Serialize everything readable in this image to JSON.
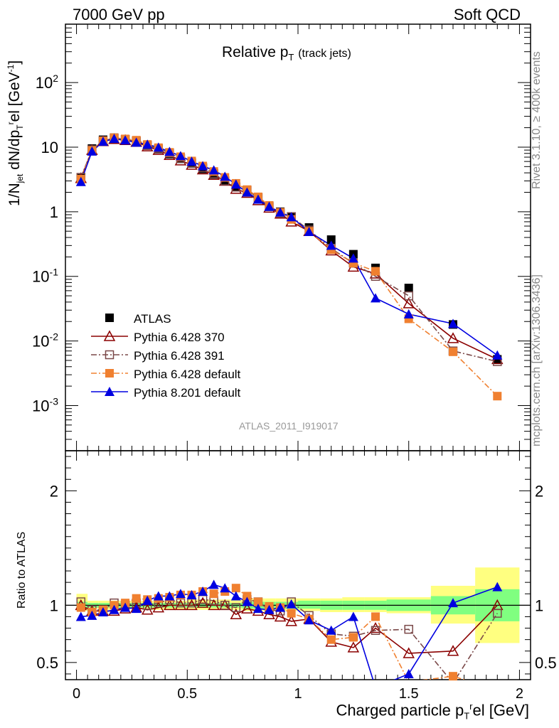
{
  "header": {
    "left": "7000 GeV pp",
    "right": "Soft QCD"
  },
  "side": {
    "rivet": "Rivet 3.1.10, ≥ 400k events",
    "mcplots": "mcplots.cern.ch [arXiv:1306.3436]"
  },
  "watermark": "ATLAS_2011_I919017",
  "chart_data": [
    {
      "type": "scatter",
      "title": "Relative p_T (track jets)",
      "title_main": "Relative p",
      "title_sub": "T",
      "title_note": "(track jets)",
      "ylabel": "1/N_jet dN/dp_T^rel [GeV^-1]",
      "yscale": "log",
      "ylim": [
        0.0002,
        800
      ],
      "xlim": [
        -0.05,
        2.05
      ],
      "ytick_labels": [
        "10^-3",
        "10^-2",
        "10^-1",
        "1",
        "10",
        "10^2"
      ],
      "legend_position": "lower-left",
      "x": [
        0.02,
        0.07,
        0.12,
        0.17,
        0.22,
        0.27,
        0.32,
        0.37,
        0.42,
        0.47,
        0.52,
        0.57,
        0.62,
        0.67,
        0.72,
        0.77,
        0.82,
        0.87,
        0.92,
        0.97,
        1.05,
        1.15,
        1.25,
        1.35,
        1.5,
        1.7,
        1.9
      ],
      "series": [
        {
          "name": "ATLAS",
          "color": "#000000",
          "marker": "filled-square",
          "values": [
            3.3,
            9.5,
            13.0,
            14.0,
            13.2,
            12.2,
            10.7,
            9.3,
            7.8,
            6.6,
            5.6,
            4.6,
            3.8,
            3.05,
            2.45,
            2.05,
            1.6,
            1.25,
            1.0,
            0.82,
            0.57,
            0.37,
            0.22,
            0.135,
            0.066,
            0.018,
            0.0052
          ]
        },
        {
          "name": "Pythia 6.428 370",
          "color": "#8b0000",
          "marker": "open-triangle",
          "line": "solid",
          "values": [
            3.3,
            9.0,
            12.3,
            13.3,
            12.8,
            12.0,
            10.2,
            9.0,
            7.5,
            6.2,
            5.3,
            4.5,
            3.7,
            3.0,
            2.25,
            1.95,
            1.5,
            1.15,
            0.93,
            0.7,
            0.5,
            0.25,
            0.14,
            0.11,
            0.038,
            0.011,
            0.0052
          ]
        },
        {
          "name": "Pythia 6.428 391",
          "color": "#7a4848",
          "marker": "open-square",
          "line": "dashdot",
          "values": [
            3.4,
            9.1,
            12.5,
            13.8,
            13.1,
            12.4,
            10.6,
            9.4,
            8.1,
            6.7,
            5.7,
            4.8,
            3.9,
            3.0,
            2.4,
            2.15,
            1.65,
            1.2,
            0.95,
            0.84,
            0.52,
            0.27,
            0.16,
            0.1,
            0.05,
            0.007,
            0.0048
          ]
        },
        {
          "name": "Pythia 6.428 default",
          "color": "#f08030",
          "marker": "filled-square",
          "line": "dashdot",
          "values": [
            3.2,
            8.9,
            12.5,
            14.0,
            13.4,
            12.8,
            11.0,
            9.8,
            8.3,
            7.1,
            6.1,
            5.1,
            4.2,
            3.4,
            2.75,
            2.2,
            1.7,
            1.25,
            0.98,
            0.76,
            0.5,
            0.26,
            0.16,
            0.12,
            0.022,
            0.0068,
            0.0014
          ]
        },
        {
          "name": "Pythia 8.201 default",
          "color": "#0000e0",
          "marker": "filled-triangle",
          "line": "solid",
          "values": [
            2.9,
            8.6,
            12.2,
            13.5,
            12.8,
            11.8,
            11.0,
            9.9,
            8.5,
            7.3,
            6.0,
            5.1,
            4.4,
            3.5,
            2.65,
            2.0,
            1.55,
            1.2,
            0.98,
            0.83,
            0.49,
            0.3,
            0.19,
            0.046,
            0.026,
            0.0185,
            0.006
          ]
        }
      ]
    },
    {
      "type": "scatter",
      "ylabel": "Ratio to ATLAS",
      "xlabel": "Charged particle p_T^rel [GeV]",
      "xlabel_main": "Charged particle p",
      "xlabel_sub": "T",
      "xlabel_sup": "r",
      "xlabel_tail": "el [GeV]",
      "ylim": [
        0.35,
        2.35
      ],
      "xlim": [
        -0.05,
        2.05
      ],
      "ytick_labels": [
        "0.5",
        "1",
        "2"
      ],
      "xtick_labels": [
        "0",
        "0.5",
        "1",
        "1.5",
        "2"
      ],
      "x": [
        0.02,
        0.07,
        0.12,
        0.17,
        0.22,
        0.27,
        0.32,
        0.37,
        0.42,
        0.47,
        0.52,
        0.57,
        0.62,
        0.67,
        0.72,
        0.77,
        0.82,
        0.87,
        0.92,
        0.97,
        1.05,
        1.15,
        1.25,
        1.35,
        1.5,
        1.7,
        1.9
      ],
      "series": [
        {
          "name": "Pythia 6.428 370",
          "color": "#8b0000",
          "values": [
            1.0,
            0.95,
            0.95,
            0.95,
            0.97,
            0.98,
            0.96,
            0.98,
            1.0,
            1.0,
            1.0,
            1.02,
            1.0,
            1.0,
            0.92,
            0.97,
            0.95,
            0.92,
            0.9,
            0.86,
            0.88,
            0.68,
            0.63,
            0.8,
            0.58,
            0.6,
            1.0
          ]
        },
        {
          "name": "Pythia 6.428 391",
          "color": "#7a4848",
          "values": [
            1.03,
            0.96,
            0.96,
            1.02,
            1.0,
            1.02,
            1.0,
            1.02,
            1.05,
            1.02,
            1.02,
            1.05,
            1.04,
            1.0,
            0.98,
            1.05,
            1.03,
            0.96,
            0.95,
            1.03,
            0.91,
            0.75,
            0.73,
            0.78,
            0.79,
            0.32,
            0.93
          ]
        },
        {
          "name": "Pythia 6.428 default",
          "color": "#f08030",
          "values": [
            0.98,
            0.94,
            0.96,
            1.0,
            1.02,
            1.06,
            1.05,
            1.06,
            1.07,
            1.09,
            1.09,
            1.12,
            1.1,
            1.12,
            1.15,
            1.08,
            1.03,
            0.99,
            0.98,
            0.93,
            0.88,
            0.7,
            0.72,
            0.9,
            0.33,
            0.38,
            0.26
          ]
        },
        {
          "name": "Pythia 8.201 default",
          "color": "#0000e0",
          "values": [
            0.9,
            0.91,
            0.94,
            0.96,
            0.98,
            0.97,
            1.04,
            1.08,
            1.08,
            1.1,
            1.09,
            1.12,
            1.18,
            1.15,
            1.08,
            1.03,
            0.97,
            0.96,
            0.98,
            1.01,
            0.87,
            0.78,
            0.9,
            0.28,
            0.4,
            1.02,
            1.16
          ]
        }
      ],
      "bands": {
        "edges": [
          0.0,
          0.05,
          0.1,
          0.15,
          0.2,
          0.25,
          0.3,
          0.35,
          0.4,
          0.45,
          0.5,
          0.55,
          0.6,
          0.65,
          0.7,
          0.75,
          0.8,
          0.85,
          0.9,
          0.95,
          1.0,
          1.1,
          1.2,
          1.3,
          1.4,
          1.6,
          1.8,
          2.0
        ],
        "outer_lo": [
          0.95,
          0.97,
          0.96,
          0.97,
          0.97,
          0.97,
          0.96,
          0.96,
          0.96,
          0.96,
          0.96,
          0.96,
          0.96,
          0.96,
          0.96,
          0.95,
          0.95,
          0.95,
          0.95,
          0.95,
          0.95,
          0.94,
          0.94,
          0.94,
          0.93,
          0.84,
          0.67,
          0.5
        ],
        "outer_hi": [
          1.1,
          1.04,
          1.04,
          1.04,
          1.04,
          1.04,
          1.04,
          1.04,
          1.04,
          1.04,
          1.05,
          1.05,
          1.05,
          1.05,
          1.05,
          1.06,
          1.06,
          1.06,
          1.06,
          1.06,
          1.06,
          1.06,
          1.07,
          1.07,
          1.07,
          1.17,
          1.33,
          1.6
        ],
        "inner_lo": [
          0.97,
          0.98,
          0.98,
          0.98,
          0.98,
          0.98,
          0.98,
          0.98,
          0.98,
          0.98,
          0.98,
          0.98,
          0.98,
          0.98,
          0.98,
          0.97,
          0.97,
          0.97,
          0.97,
          0.97,
          0.97,
          0.96,
          0.96,
          0.96,
          0.95,
          0.92,
          0.86,
          0.8
        ],
        "inner_hi": [
          1.03,
          1.02,
          1.02,
          1.02,
          1.02,
          1.02,
          1.02,
          1.02,
          1.02,
          1.02,
          1.02,
          1.02,
          1.02,
          1.02,
          1.02,
          1.03,
          1.03,
          1.03,
          1.03,
          1.03,
          1.04,
          1.04,
          1.04,
          1.04,
          1.05,
          1.08,
          1.14,
          1.24
        ],
        "outer_color": "#ffff80",
        "inner_color": "#80ff80"
      }
    }
  ]
}
